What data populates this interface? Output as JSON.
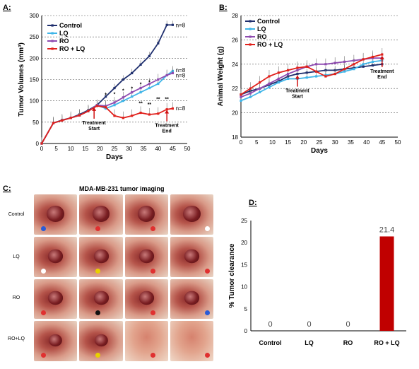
{
  "panels": {
    "a": {
      "label": "A:"
    },
    "b": {
      "label": "B:"
    },
    "c": {
      "label": "C:",
      "title": "MDA-MB-231 tumor imaging",
      "rows": [
        "Control",
        "LQ",
        "RO",
        "RO+LQ"
      ]
    },
    "d": {
      "label": "D:"
    }
  },
  "chart_data": [
    {
      "type": "line",
      "panel": "A",
      "xlabel": "Days",
      "ylabel": "Tumor Volumes (mm³)",
      "xlim": [
        0,
        50
      ],
      "ylim": [
        0,
        300
      ],
      "xticks": [
        0,
        5,
        10,
        15,
        20,
        25,
        30,
        35,
        40,
        45,
        50
      ],
      "yticks": [
        0,
        50,
        100,
        150,
        200,
        250,
        300
      ],
      "grid": "horizontal dashed",
      "legend_position": "top-left",
      "series": [
        {
          "name": "Control",
          "color": "#1f2f6e",
          "x": [
            0,
            4,
            7,
            10,
            13,
            16,
            19,
            22,
            25,
            28,
            31,
            34,
            37,
            40,
            43,
            45
          ],
          "y": [
            0,
            48,
            55,
            60,
            68,
            78,
            90,
            110,
            130,
            150,
            165,
            185,
            205,
            235,
            278,
            278
          ]
        },
        {
          "name": "LQ",
          "color": "#3fb5e8",
          "x": [
            0,
            4,
            7,
            10,
            13,
            16,
            19,
            22,
            25,
            28,
            31,
            34,
            37,
            40,
            43,
            45
          ],
          "y": [
            0,
            48,
            54,
            60,
            66,
            76,
            90,
            82,
            90,
            100,
            110,
            120,
            130,
            140,
            160,
            170
          ]
        },
        {
          "name": "RO",
          "color": "#8e4bb0",
          "x": [
            0,
            4,
            7,
            10,
            13,
            16,
            19,
            22,
            25,
            28,
            31,
            34,
            37,
            40,
            43,
            45
          ],
          "y": [
            0,
            48,
            54,
            60,
            66,
            76,
            90,
            88,
            96,
            108,
            120,
            130,
            140,
            150,
            160,
            165
          ]
        },
        {
          "name": "RO + LQ",
          "color": "#e0201b",
          "x": [
            0,
            4,
            7,
            10,
            13,
            16,
            19,
            22,
            25,
            28,
            31,
            34,
            37,
            40,
            43,
            45
          ],
          "y": [
            0,
            48,
            54,
            60,
            66,
            76,
            88,
            85,
            65,
            60,
            65,
            72,
            68,
            70,
            80,
            82
          ]
        }
      ],
      "annotations": [
        {
          "text": "Treatment",
          "line2": "Start",
          "x": 18,
          "y": 88
        },
        {
          "text": "Treatment",
          "line2": "End",
          "x": 43,
          "y": 82
        }
      ],
      "n_labels": [
        "n=8",
        "n=8",
        "n=8",
        "n=8"
      ],
      "significance_labels": [
        "*",
        "*",
        "*",
        "*",
        "*",
        "*",
        "**",
        "**",
        "**",
        "**"
      ]
    },
    {
      "type": "line",
      "panel": "B",
      "xlabel": "Days",
      "ylabel": "Animal Weight (g)",
      "xlim": [
        0,
        50
      ],
      "ylim": [
        18,
        28
      ],
      "xticks": [
        0,
        5,
        10,
        15,
        20,
        25,
        30,
        35,
        40,
        45,
        50
      ],
      "yticks": [
        18,
        20,
        22,
        24,
        26,
        28
      ],
      "grid": "horizontal dashed",
      "legend_position": "top-left",
      "series": [
        {
          "name": "Control",
          "color": "#1f2f6e",
          "x": [
            0,
            3,
            6,
            9,
            12,
            15,
            18,
            21,
            24,
            27,
            30,
            33,
            36,
            39,
            42,
            45
          ],
          "y": [
            21.5,
            21.8,
            22.0,
            22.3,
            22.6,
            23.0,
            23.2,
            23.3,
            23.4,
            23.5,
            23.5,
            23.6,
            23.7,
            23.8,
            23.9,
            24.0
          ]
        },
        {
          "name": "LQ",
          "color": "#3fb5e8",
          "x": [
            0,
            3,
            6,
            9,
            12,
            15,
            18,
            21,
            24,
            27,
            30,
            33,
            36,
            39,
            42,
            45
          ],
          "y": [
            21.0,
            21.3,
            21.7,
            22.1,
            22.5,
            22.8,
            22.8,
            22.9,
            23.0,
            23.1,
            23.2,
            23.4,
            23.6,
            24.0,
            24.2,
            24.3
          ]
        },
        {
          "name": "RO",
          "color": "#8e4bb0",
          "x": [
            0,
            3,
            6,
            9,
            12,
            15,
            18,
            21,
            24,
            27,
            30,
            33,
            36,
            39,
            42,
            45
          ],
          "y": [
            21.3,
            21.6,
            22.0,
            22.4,
            22.8,
            23.2,
            23.5,
            23.8,
            24.0,
            24.0,
            24.1,
            24.2,
            24.3,
            24.4,
            24.5,
            24.5
          ]
        },
        {
          "name": "RO + LQ",
          "color": "#e0201b",
          "x": [
            0,
            3,
            6,
            9,
            12,
            15,
            18,
            21,
            24,
            27,
            30,
            33,
            36,
            39,
            42,
            45
          ],
          "y": [
            21.5,
            22.0,
            22.5,
            23.0,
            23.3,
            23.5,
            23.7,
            23.8,
            23.4,
            23.0,
            23.2,
            23.6,
            24.0,
            24.4,
            24.6,
            24.8
          ]
        }
      ],
      "annotations": [
        {
          "text": "Treatment",
          "line2": "Start",
          "x": 18,
          "y": 23.2
        },
        {
          "text": "Treatment",
          "line2": "End",
          "x": 45,
          "y": 24.8
        }
      ]
    },
    {
      "type": "bar",
      "panel": "D",
      "categories": [
        "Control",
        "LQ",
        "RO",
        "RO + LQ"
      ],
      "values": [
        0,
        0,
        0,
        21.4
      ],
      "data_labels": [
        "0",
        "0",
        "0",
        "21.4"
      ],
      "ylabel": "% Tumor clearance",
      "ylim": [
        0,
        25
      ],
      "yticks": [
        0,
        5,
        10,
        15,
        20,
        25
      ],
      "bar_color": "#c00000"
    }
  ],
  "photo_beads": [
    [
      "#2a5bd7",
      "#e03030",
      "#e03030",
      "#ffffff"
    ],
    [
      "#ffffff",
      "#e8d000",
      "#e03030",
      "#e03030"
    ],
    [
      "#e03030",
      "#111111",
      "#e03030",
      "#2a5bd7"
    ],
    [
      "#e03030",
      "#e8d000",
      "#e03030",
      "#e03030"
    ]
  ]
}
